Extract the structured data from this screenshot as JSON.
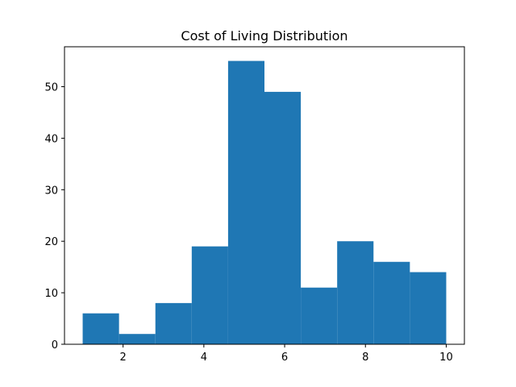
{
  "chart_data": {
    "type": "bar",
    "subtype": "histogram",
    "title": "Cost of Living Distribution",
    "xlabel": "",
    "ylabel": "",
    "bin_edges": [
      1.0,
      1.9,
      2.8,
      3.7,
      4.6,
      5.5,
      6.4,
      7.3,
      8.2,
      9.1,
      10.0
    ],
    "values": [
      6,
      2,
      8,
      19,
      55,
      49,
      11,
      20,
      16,
      14
    ],
    "xlim": [
      0.55,
      10.45
    ],
    "ylim": [
      0,
      57.75
    ],
    "xticks": [
      2,
      4,
      6,
      8,
      10
    ],
    "xtick_labels": [
      "2",
      "4",
      "6",
      "8",
      "10"
    ],
    "yticks": [
      0,
      10,
      20,
      30,
      40,
      50
    ],
    "ytick_labels": [
      "0",
      "10",
      "20",
      "30",
      "40",
      "50"
    ],
    "grid": false,
    "bar_color": "#1f77b4"
  }
}
